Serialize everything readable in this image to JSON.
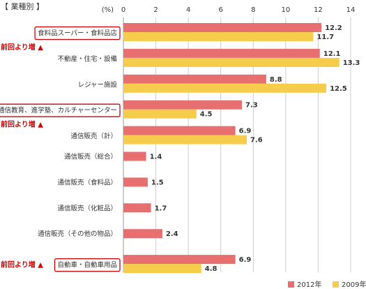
{
  "chart_data": {
    "type": "bar",
    "orientation": "horizontal",
    "title": "【 業種別 】",
    "unit_label": "(%)",
    "xlim": [
      0,
      14
    ],
    "x_ticks": [
      "0",
      "2",
      "4",
      "6",
      "8",
      "10",
      "12",
      "14"
    ],
    "grid": true,
    "legend_position": "bottom-right",
    "categories": [
      "食料品スーパー・食料品店",
      "不動産・住宅・設備",
      "レジャー施設",
      "通信教育、進学塾、カルチャーセンター",
      "通信販売（計）",
      "通信販売（総合）",
      "通信販売（食料品）",
      "通信販売（化粧品）",
      "通信販売（その他の物品）",
      "自動車・自動車用品"
    ],
    "highlighted": [
      true,
      false,
      false,
      true,
      false,
      false,
      false,
      false,
      false,
      true
    ],
    "increase_notes": [
      "前回より増 ▲",
      "",
      "",
      "前回より増 ▲",
      "",
      "",
      "",
      "",
      "",
      "前回より増 ▲"
    ],
    "series": [
      {
        "name": "2012年",
        "color": "#e86f6f",
        "values": [
          12.2,
          12.1,
          8.8,
          7.3,
          6.9,
          1.4,
          1.5,
          1.7,
          2.4,
          6.9
        ],
        "labels": [
          "12.2",
          "12.1",
          "8.8",
          "7.3",
          "6.9",
          "1.4",
          "1.5",
          "1.7",
          "2.4",
          "6.9"
        ]
      },
      {
        "name": "2009年",
        "color": "#f5cc4c",
        "values": [
          11.7,
          13.3,
          12.5,
          4.5,
          7.6,
          null,
          null,
          null,
          null,
          4.8
        ],
        "labels": [
          "11.7",
          "13.3",
          "12.5",
          "4.5",
          "7.6",
          "",
          "",
          "",
          "",
          "4.8"
        ]
      }
    ]
  },
  "colors": {
    "highlight_border": "#cc0000",
    "note_text": "#cc0000",
    "grid": "#cccccc",
    "axis": "#999999"
  }
}
